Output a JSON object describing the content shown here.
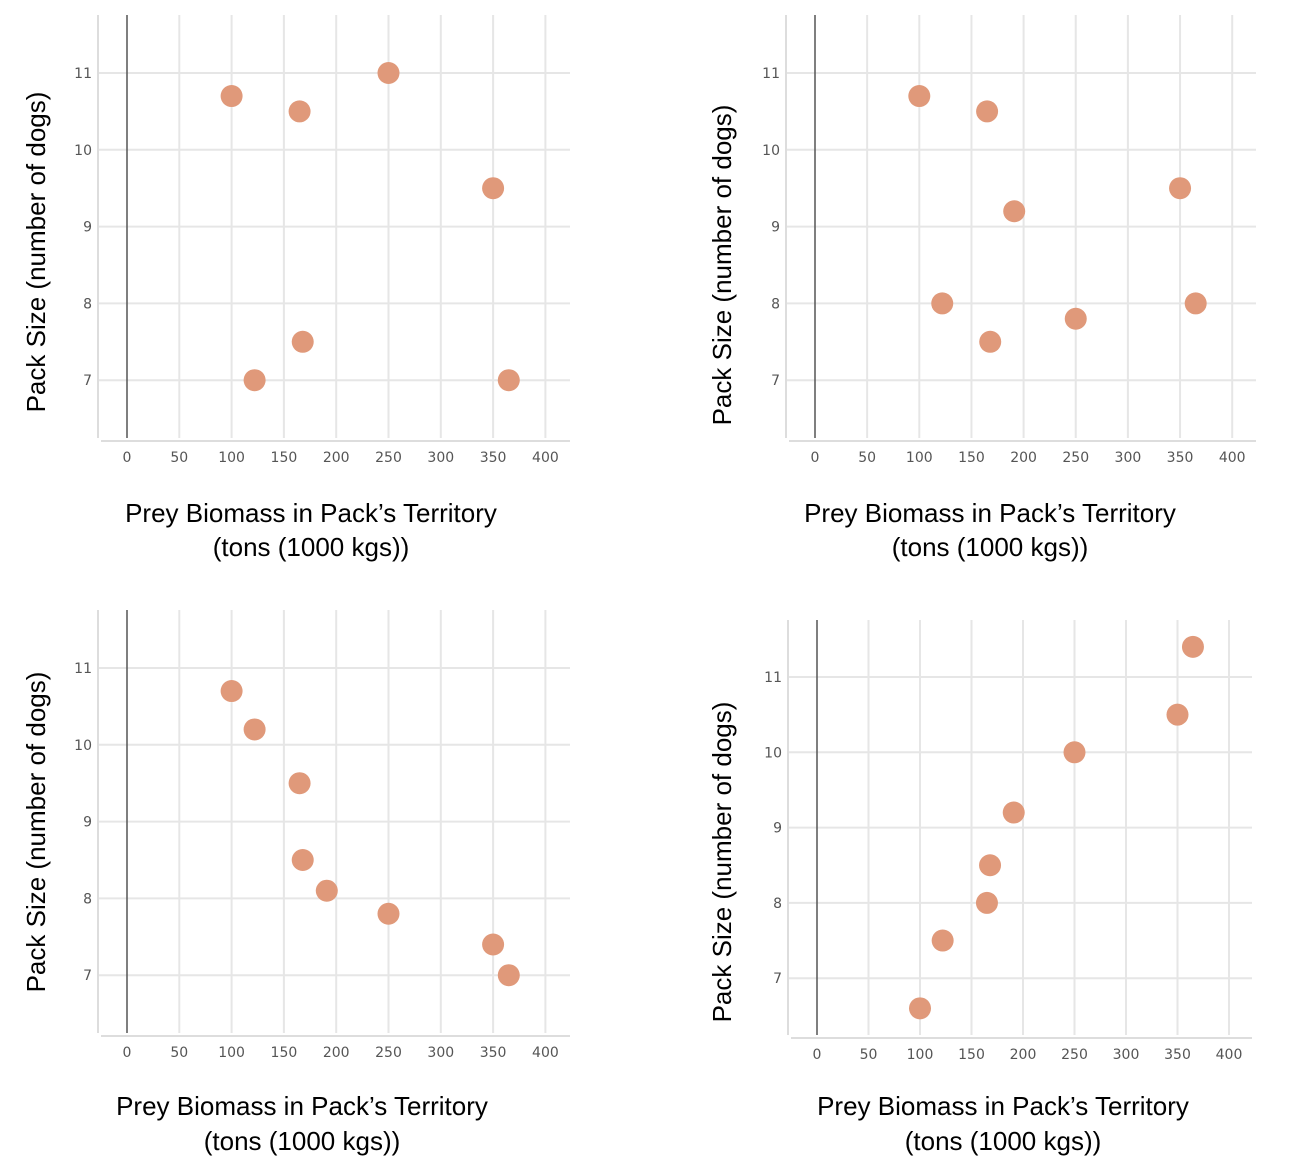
{
  "chart_data": [
    {
      "type": "scatter",
      "xlabel": "Prey Biomass in Pack’s Territory",
      "xlabel_line2": "(tons (1000 kgs))",
      "ylabel": "Pack Size (number of dogs)",
      "xticks": [
        0,
        50,
        100,
        150,
        200,
        250,
        300,
        350,
        400
      ],
      "yticks": [
        7,
        8,
        9,
        10,
        11
      ],
      "grid": true,
      "marker_color": "#e0997a",
      "points": [
        {
          "x": 100,
          "y": 10.7
        },
        {
          "x": 165,
          "y": 10.5
        },
        {
          "x": 250,
          "y": 11
        },
        {
          "x": 350,
          "y": 9.5
        },
        {
          "x": 168,
          "y": 7.5
        },
        {
          "x": 122,
          "y": 7
        },
        {
          "x": 365,
          "y": 7
        }
      ]
    },
    {
      "type": "scatter",
      "xlabel": "Prey Biomass in Pack’s Territory",
      "xlabel_line2": "(tons (1000 kgs))",
      "ylabel": "Pack Size (number of dogs)",
      "xticks": [
        0,
        50,
        100,
        150,
        200,
        250,
        300,
        350,
        400
      ],
      "yticks": [
        7,
        8,
        9,
        10,
        11
      ],
      "grid": true,
      "marker_color": "#e0997a",
      "points": [
        {
          "x": 100,
          "y": 10.7
        },
        {
          "x": 165,
          "y": 10.5
        },
        {
          "x": 350,
          "y": 9.5
        },
        {
          "x": 191,
          "y": 9.2
        },
        {
          "x": 122,
          "y": 8
        },
        {
          "x": 250,
          "y": 7.8
        },
        {
          "x": 168,
          "y": 7.5
        },
        {
          "x": 365,
          "y": 8
        }
      ]
    },
    {
      "type": "scatter",
      "xlabel": "Prey Biomass in Pack’s Territory",
      "xlabel_line2": "(tons (1000 kgs))",
      "ylabel": "Pack Size (number of dogs)",
      "xticks": [
        0,
        50,
        100,
        150,
        200,
        250,
        300,
        350,
        400
      ],
      "yticks": [
        7,
        8,
        9,
        10,
        11
      ],
      "grid": true,
      "marker_color": "#e0997a",
      "points": [
        {
          "x": 100,
          "y": 10.7
        },
        {
          "x": 122,
          "y": 10.2
        },
        {
          "x": 165,
          "y": 9.5
        },
        {
          "x": 168,
          "y": 8.5
        },
        {
          "x": 191,
          "y": 8.1
        },
        {
          "x": 250,
          "y": 7.8
        },
        {
          "x": 350,
          "y": 7.4
        },
        {
          "x": 365,
          "y": 7
        }
      ]
    },
    {
      "type": "scatter",
      "xlabel": "Prey Biomass in Pack’s Territory",
      "xlabel_line2": "(tons (1000 kgs))",
      "ylabel": "Pack Size (number of dogs)",
      "xticks": [
        0,
        50,
        100,
        150,
        200,
        250,
        300,
        350,
        400
      ],
      "yticks": [
        7,
        8,
        9,
        10,
        11
      ],
      "grid": true,
      "marker_color": "#e0997a",
      "points": [
        {
          "x": 365,
          "y": 11.4
        },
        {
          "x": 350,
          "y": 10.5
        },
        {
          "x": 250,
          "y": 10
        },
        {
          "x": 191,
          "y": 9.2
        },
        {
          "x": 168,
          "y": 8.5
        },
        {
          "x": 165,
          "y": 8
        },
        {
          "x": 122,
          "y": 7.5
        },
        {
          "x": 100,
          "y": 6.6
        }
      ]
    }
  ]
}
